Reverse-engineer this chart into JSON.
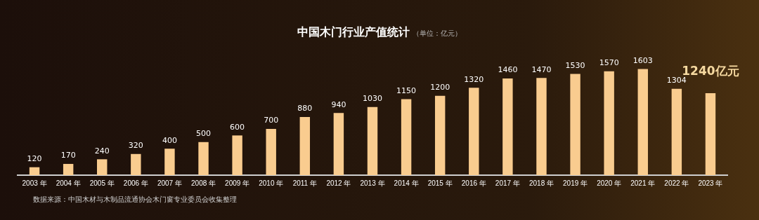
{
  "chart_data": {
    "type": "bar",
    "title": "中国木门行业产值统计",
    "subtitle": "（单位：亿元）",
    "categories": [
      "2003 年",
      "2004 年",
      "2005 年",
      "2006 年",
      "2007 年",
      "2008 年",
      "2009 年",
      "2010 年",
      "2011 年",
      "2012 年",
      "2013 年",
      "2014 年",
      "2015 年",
      "2016 年",
      "2017 年",
      "2018 年",
      "2019 年",
      "2020 年",
      "2021 年",
      "2022 年",
      "2023 年"
    ],
    "values": [
      120,
      170,
      240,
      320,
      400,
      500,
      600,
      700,
      880,
      940,
      1030,
      1150,
      1200,
      1320,
      1460,
      1470,
      1530,
      1570,
      1603,
      1304,
      1240
    ],
    "value_labels": [
      "120",
      "170",
      "240",
      "320",
      "400",
      "500",
      "600",
      "700",
      "880",
      "940",
      "1030",
      "1150",
      "1200",
      "1320",
      "1460",
      "1470",
      "1530",
      "1570",
      "1603",
      "1304",
      "1240亿元"
    ],
    "color": "#f9cc8f",
    "tick_labels": "x",
    "grid": false,
    "legend": false,
    "annotations": [
      "数据来源：中国木材与木制品流通协会木门窗专业委员会收集整理"
    ]
  }
}
